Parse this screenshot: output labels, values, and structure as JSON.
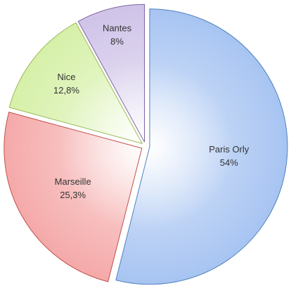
{
  "chart_data": {
    "type": "pie",
    "categories": [
      "Paris Orly",
      "Marseille",
      "Nice",
      "Nantes"
    ],
    "values": [
      54,
      25.3,
      12.8,
      8
    ],
    "value_labels": [
      "54%",
      "25,3%",
      "12,8%",
      "8%"
    ],
    "colors": [
      "#a7c4f2",
      "#f5a9a9",
      "#d6f0a8",
      "#cfc3e8"
    ],
    "stroke_colors": [
      "#4f81bd",
      "#c0504d",
      "#9bbb59",
      "#8064a2"
    ]
  }
}
